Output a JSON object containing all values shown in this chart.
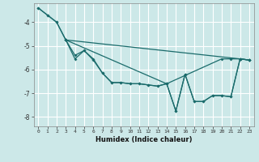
{
  "xlabel": "Humidex (Indice chaleur)",
  "bg_color": "#cce8e8",
  "line_color": "#1a6b6b",
  "grid_color": "#ffffff",
  "xlim": [
    -0.5,
    23.5
  ],
  "ylim": [
    -8.4,
    -3.2
  ],
  "yticks": [
    -8,
    -7,
    -6,
    -5,
    -4
  ],
  "xticks": [
    0,
    1,
    2,
    3,
    4,
    5,
    6,
    7,
    8,
    9,
    10,
    11,
    12,
    13,
    14,
    15,
    16,
    17,
    18,
    19,
    20,
    21,
    22,
    23
  ],
  "line1_x": [
    0,
    1,
    2,
    3,
    22,
    23
  ],
  "line1_y": [
    -3.4,
    -3.7,
    -4.0,
    -4.75,
    -5.55,
    -5.6
  ],
  "line2_x": [
    0,
    1,
    2,
    3,
    4,
    5,
    6,
    7,
    8,
    9,
    10,
    11,
    12,
    13,
    14,
    20,
    21,
    22,
    23
  ],
  "line2_y": [
    -3.4,
    -3.7,
    -4.0,
    -4.75,
    -5.4,
    -5.2,
    -5.55,
    -6.15,
    -6.55,
    -6.55,
    -6.6,
    -6.6,
    -6.65,
    -6.7,
    -6.6,
    -5.55,
    -5.55,
    -5.55,
    -5.6
  ],
  "line3_x": [
    3,
    4,
    5,
    6,
    7,
    8,
    9,
    10,
    11,
    12,
    13,
    14,
    15,
    16,
    17,
    18,
    19,
    20,
    21,
    22,
    23
  ],
  "line3_y": [
    -4.75,
    -5.55,
    -5.2,
    -5.6,
    -6.15,
    -6.55,
    -6.55,
    -6.6,
    -6.6,
    -6.65,
    -6.7,
    -6.6,
    -7.75,
    -6.2,
    -7.35,
    -7.35,
    -7.1,
    -7.1,
    -7.15,
    -5.55,
    -5.6
  ],
  "line4_x": [
    3,
    14,
    15,
    16,
    17,
    18,
    19,
    20,
    21,
    22,
    23
  ],
  "line4_y": [
    -4.75,
    -6.6,
    -7.75,
    -6.2,
    -7.35,
    -7.35,
    -7.1,
    -7.1,
    -7.15,
    -5.55,
    -5.6
  ]
}
